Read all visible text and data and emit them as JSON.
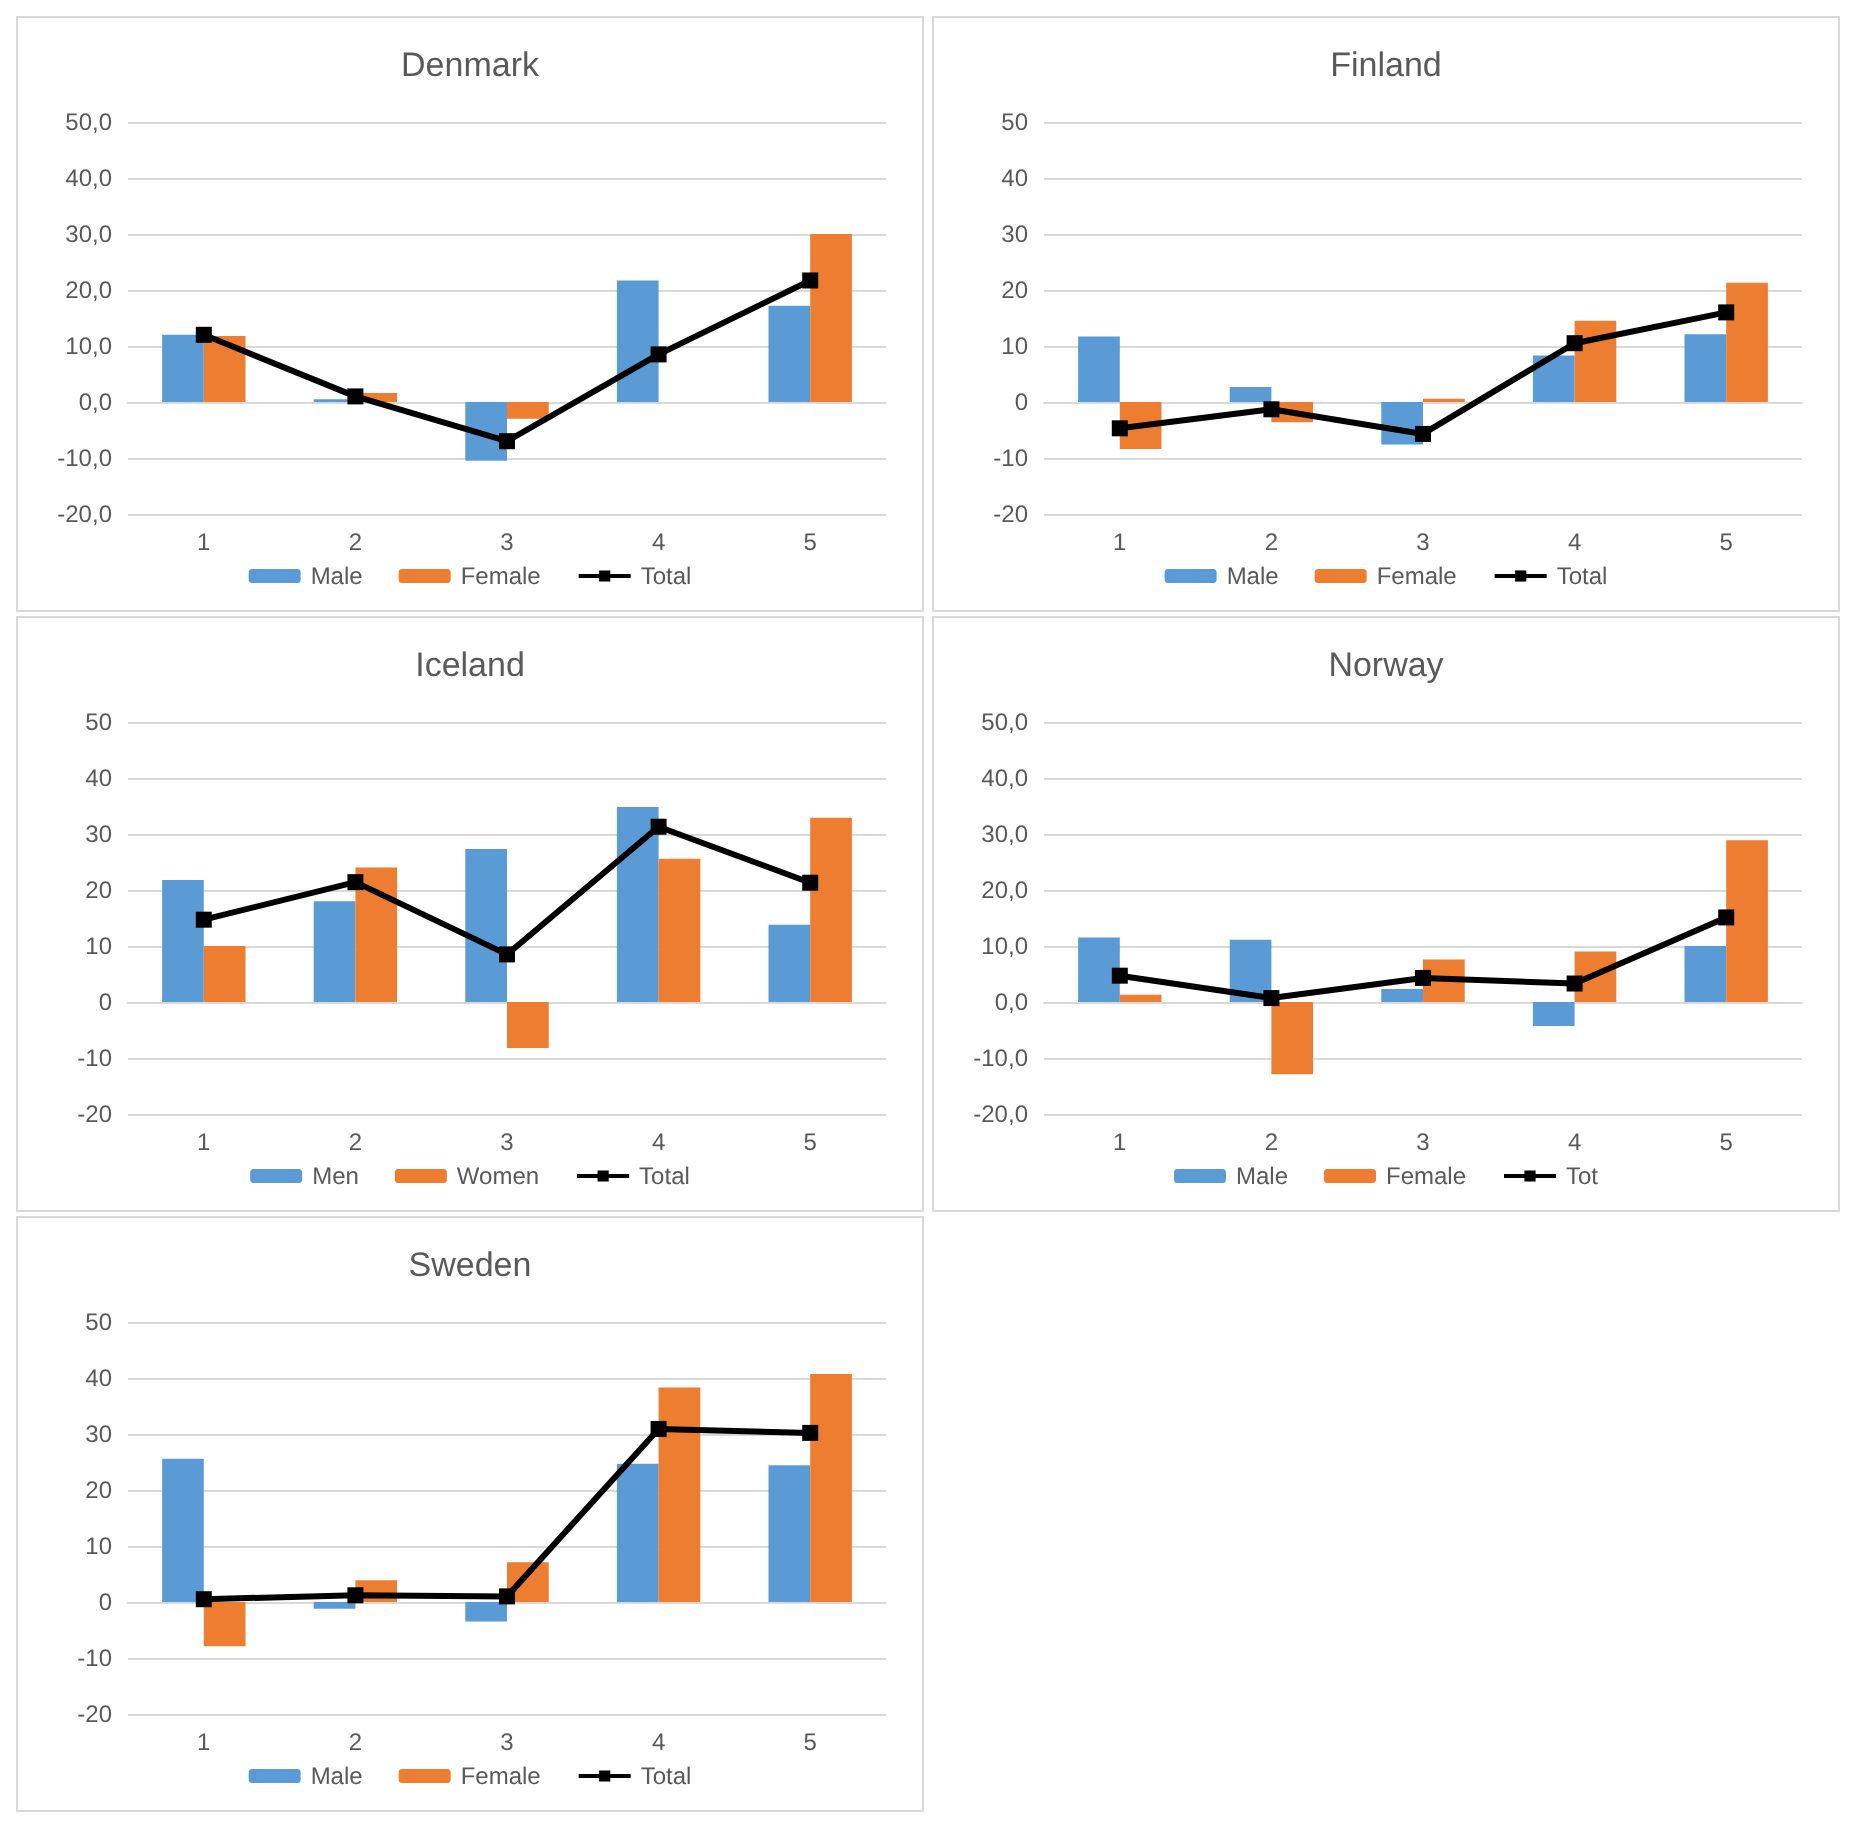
{
  "chart_data": [
    {
      "type": "bar",
      "title": "Denmark",
      "categories": [
        "1",
        "2",
        "3",
        "4",
        "5"
      ],
      "ylim": [
        -20,
        50
      ],
      "yticks": [
        {
          "value": -20,
          "label": "-20,0"
        },
        {
          "value": -10,
          "label": "-10,0"
        },
        {
          "value": 0,
          "label": "0,0"
        },
        {
          "value": 10,
          "label": "10,0"
        },
        {
          "value": 20,
          "label": "20,0"
        },
        {
          "value": 30,
          "label": "30,0"
        },
        {
          "value": 40,
          "label": "40,0"
        },
        {
          "value": 50,
          "label": "50,0"
        }
      ],
      "grid": "y",
      "legend": "bottom",
      "series": [
        {
          "name": "Male",
          "color": "#5b9bd5",
          "values": [
            12,
            0.5,
            -10.5,
            21.7,
            17.2
          ]
        },
        {
          "name": "Female",
          "color": "#ed7d31",
          "values": [
            11.8,
            1.6,
            -3,
            0,
            30
          ]
        },
        {
          "name": "Total",
          "type": "line",
          "color": "#000000",
          "marker": "square",
          "values": [
            12,
            1,
            -7,
            8.5,
            21.7
          ]
        }
      ]
    },
    {
      "type": "bar",
      "title": "Finland",
      "categories": [
        "1",
        "2",
        "3",
        "4",
        "5"
      ],
      "ylim": [
        -20,
        50
      ],
      "yticks": [
        -20,
        -10,
        0,
        10,
        20,
        30,
        40,
        50
      ],
      "grid": "y",
      "legend": "bottom",
      "series": [
        {
          "name": "Male",
          "color": "#5b9bd5",
          "values": [
            11.7,
            2.7,
            -7.6,
            8.3,
            12.1
          ]
        },
        {
          "name": "Female",
          "color": "#ed7d31",
          "values": [
            -8.4,
            -3.6,
            0.6,
            14.5,
            21.3
          ]
        },
        {
          "name": "Total",
          "type": "line",
          "color": "#000000",
          "marker": "square",
          "values": [
            -4.7,
            -1.3,
            -5.7,
            10.5,
            16
          ]
        }
      ]
    },
    {
      "type": "bar",
      "title": "Iceland",
      "categories": [
        "1",
        "2",
        "3",
        "4",
        "5"
      ],
      "ylim": [
        -20,
        50
      ],
      "yticks": [
        -20,
        -10,
        0,
        10,
        20,
        30,
        40,
        50
      ],
      "grid": "y",
      "legend": "bottom",
      "series": [
        {
          "name": "Men",
          "color": "#5b9bd5",
          "values": [
            21.8,
            18,
            27.3,
            34.8,
            13.8
          ]
        },
        {
          "name": "Women",
          "color": "#ed7d31",
          "values": [
            10,
            24,
            -8.2,
            25.6,
            32.9
          ]
        },
        {
          "name": "Total",
          "type": "line",
          "color": "#000000",
          "marker": "square",
          "values": [
            14.7,
            21.4,
            8.5,
            31.3,
            21.3
          ]
        }
      ]
    },
    {
      "type": "bar",
      "title": "Norway",
      "categories": [
        "1",
        "2",
        "3",
        "4",
        "5"
      ],
      "ylim": [
        -20,
        50
      ],
      "yticks": [
        {
          "value": -20,
          "label": "-20,0"
        },
        {
          "value": -10,
          "label": "-10,0"
        },
        {
          "value": 0,
          "label": "0,0"
        },
        {
          "value": 10,
          "label": "10,0"
        },
        {
          "value": 20,
          "label": "20,0"
        },
        {
          "value": 30,
          "label": "30,0"
        },
        {
          "value": 40,
          "label": "40,0"
        },
        {
          "value": 50,
          "label": "50,0"
        }
      ],
      "grid": "y",
      "legend": "bottom",
      "series": [
        {
          "name": "Male",
          "color": "#5b9bd5",
          "values": [
            11.5,
            11.1,
            2.3,
            -4.3,
            10
          ]
        },
        {
          "name": "Female",
          "color": "#ed7d31",
          "values": [
            1.3,
            -12.9,
            7.6,
            9,
            28.9
          ]
        },
        {
          "name": "Tot",
          "type": "line",
          "color": "#000000",
          "marker": "square",
          "values": [
            4.7,
            0.7,
            4.3,
            3.3,
            15.1
          ]
        }
      ]
    },
    {
      "type": "bar",
      "title": "Sweden",
      "categories": [
        "1",
        "2",
        "3",
        "4",
        "5"
      ],
      "ylim": [
        -20,
        50
      ],
      "yticks": [
        -20,
        -10,
        0,
        10,
        20,
        30,
        40,
        50
      ],
      "grid": "y",
      "legend": "bottom",
      "series": [
        {
          "name": "Male",
          "color": "#5b9bd5",
          "values": [
            25.6,
            -1.2,
            -3.5,
            24.7,
            24.4
          ]
        },
        {
          "name": "Female",
          "color": "#ed7d31",
          "values": [
            -7.9,
            3.9,
            7.1,
            38.3,
            40.7
          ]
        },
        {
          "name": "Total",
          "type": "line",
          "color": "#000000",
          "marker": "square",
          "values": [
            0.5,
            1.2,
            1,
            30.9,
            30.2
          ]
        }
      ]
    }
  ]
}
